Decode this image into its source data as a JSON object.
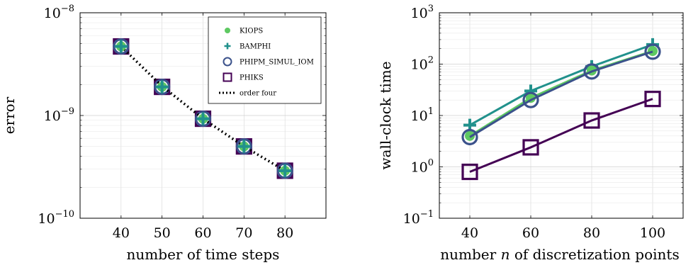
{
  "chart_data": [
    {
      "type": "scatter",
      "xlabel": "number of time steps",
      "ylabel": "error",
      "yscale": "log",
      "ylim": [
        1e-10,
        1e-08
      ],
      "xlim": [
        30,
        90
      ],
      "xticks": [
        40,
        50,
        60,
        70,
        80
      ],
      "yticks": [
        {
          "value": 1e-10,
          "base": "10",
          "exp": "−10"
        },
        {
          "value": 1e-09,
          "base": "10",
          "exp": "−9"
        },
        {
          "value": 1e-08,
          "base": "10",
          "exp": "−8"
        }
      ],
      "grid": true,
      "legend_position": "top-right",
      "x": [
        40,
        50,
        60,
        70,
        80
      ],
      "series": [
        {
          "name": "KIOPS",
          "marker": "circle-filled",
          "color": "#5ec962",
          "values": [
            4.7e-09,
            1.9e-09,
            9.3e-10,
            5e-10,
            2.9e-10
          ]
        },
        {
          "name": "BAMPHI",
          "marker": "plus",
          "color": "#21918c",
          "values": [
            4.7e-09,
            1.9e-09,
            9.3e-10,
            5e-10,
            2.9e-10
          ]
        },
        {
          "name": "PHIPM_SIMUL_IOM",
          "marker": "circle-open",
          "color": "#3b528b",
          "values": [
            4.7e-09,
            1.9e-09,
            9.3e-10,
            5e-10,
            2.9e-10
          ]
        },
        {
          "name": "PHIKS",
          "marker": "square-open",
          "color": "#440154",
          "values": [
            4.7e-09,
            1.9e-09,
            9.3e-10,
            5e-10,
            2.9e-10
          ]
        },
        {
          "name": "order four",
          "marker": "dotted-line",
          "color": "#000000",
          "values": [
            4.7e-09,
            1.93e-09,
            9.3e-10,
            5e-10,
            2.9e-10
          ]
        }
      ]
    },
    {
      "type": "line",
      "xlabel_prefix": "number ",
      "xlabel_var": "n",
      "xlabel_suffix": " of discretization points",
      "ylabel": "wall-clock time",
      "yscale": "log",
      "ylim": [
        0.1,
        1000
      ],
      "xlim": [
        30,
        110
      ],
      "xticks": [
        40,
        60,
        80,
        100
      ],
      "yticks": [
        {
          "value": 0.1,
          "base": "10",
          "exp": "−1"
        },
        {
          "value": 1,
          "base": "10",
          "exp": "0"
        },
        {
          "value": 10,
          "base": "10",
          "exp": "1"
        },
        {
          "value": 100,
          "base": "10",
          "exp": "2"
        },
        {
          "value": 1000,
          "base": "10",
          "exp": "3"
        }
      ],
      "grid": true,
      "x": [
        40,
        60,
        80,
        100
      ],
      "series": [
        {
          "name": "BAMPHI",
          "marker": "plus",
          "color": "#21918c",
          "values": [
            6.5,
            30,
            90,
            240
          ]
        },
        {
          "name": "KIOPS",
          "marker": "circle-filled",
          "color": "#5ec962",
          "values": [
            4.0,
            22,
            75,
            180
          ]
        },
        {
          "name": "PHIPM_SIMUL_IOM",
          "marker": "circle-open",
          "color": "#3b528b",
          "values": [
            3.8,
            20,
            72,
            175
          ]
        },
        {
          "name": "PHIKS",
          "marker": "square-open",
          "color": "#440154",
          "values": [
            0.8,
            2.4,
            8.0,
            21
          ]
        }
      ]
    }
  ]
}
